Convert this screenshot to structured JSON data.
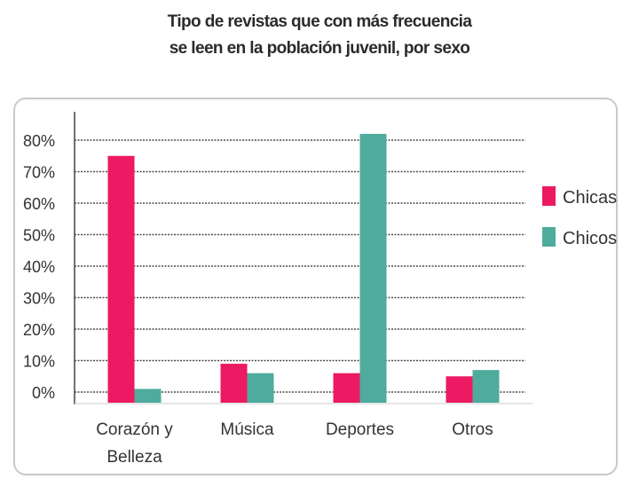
{
  "title_lines": [
    "Tipo de revistas que con más frecuencia",
    "se leen en la población juvenil, por sexo"
  ],
  "chart_data": {
    "type": "bar",
    "title": "Tipo de revistas que con más frecuencia se leen en la población juvenil, por sexo",
    "categories": [
      [
        "Corazón y",
        "Belleza"
      ],
      [
        "Música"
      ],
      [
        "Deportes"
      ],
      [
        "Otros"
      ]
    ],
    "series": [
      {
        "name": "Chicas",
        "color": "#ec1a63",
        "values": [
          75,
          9,
          6,
          5
        ]
      },
      {
        "name": "Chicos",
        "color": "#4fac9c",
        "values": [
          1,
          6,
          82,
          7
        ]
      }
    ],
    "yticks": [
      0,
      10,
      20,
      30,
      40,
      50,
      60,
      70,
      80
    ],
    "ytick_labels": [
      "0%",
      "10%",
      "20%",
      "30%",
      "40%",
      "50%",
      "60%",
      "70%",
      "80%"
    ],
    "ylim": [
      0,
      80
    ],
    "xlabel": "",
    "ylabel": "",
    "grid": true,
    "legend_position": "right"
  }
}
